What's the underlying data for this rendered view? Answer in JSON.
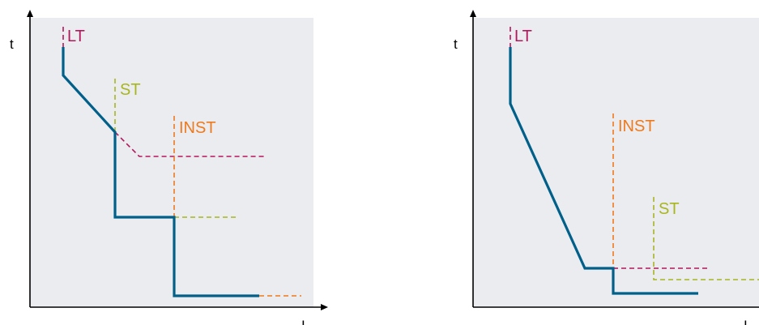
{
  "colors": {
    "panel_bg": "#ebecef",
    "axis": "#000000",
    "trip_curve": "#00608a",
    "lt": "#b5175e",
    "st": "#a8b61e",
    "inst": "#ee7a1e"
  },
  "left_diagram": {
    "y_axis_label": "t",
    "x_axis_label": "I",
    "labels": {
      "lt": "LT",
      "st": "ST",
      "inst": "INST"
    }
  },
  "right_diagram": {
    "y_axis_label": "t",
    "x_axis_label": "I",
    "labels": {
      "lt": "LT",
      "inst": "INST",
      "st": "ST"
    }
  }
}
